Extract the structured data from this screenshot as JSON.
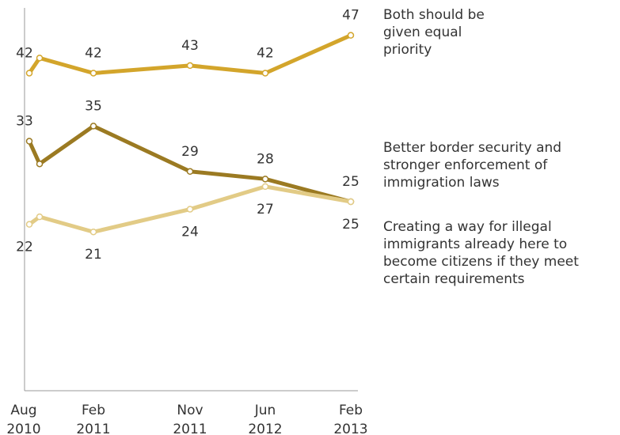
{
  "chart_data": {
    "type": "line",
    "categories": [
      "Aug 2010",
      null,
      "Feb 2011",
      "Nov 2011",
      "Jun 2012",
      "Feb 2013"
    ],
    "series": [
      {
        "name": "Both should be given equal priority",
        "color": "#d3a52b",
        "values": [
          42,
          44,
          42,
          43,
          42,
          47
        ]
      },
      {
        "name": "Better border security and stronger enforcement of immigration laws",
        "color": "#9b7a22",
        "values": [
          33,
          30,
          35,
          29,
          28,
          25
        ]
      },
      {
        "name": "Creating a way for illegal immigrants already here to become citizens if they meet certain requirements",
        "color": "#e2cb86",
        "values": [
          22,
          23,
          21,
          24,
          27,
          25
        ]
      }
    ],
    "ylim": [
      0,
      50
    ]
  }
}
